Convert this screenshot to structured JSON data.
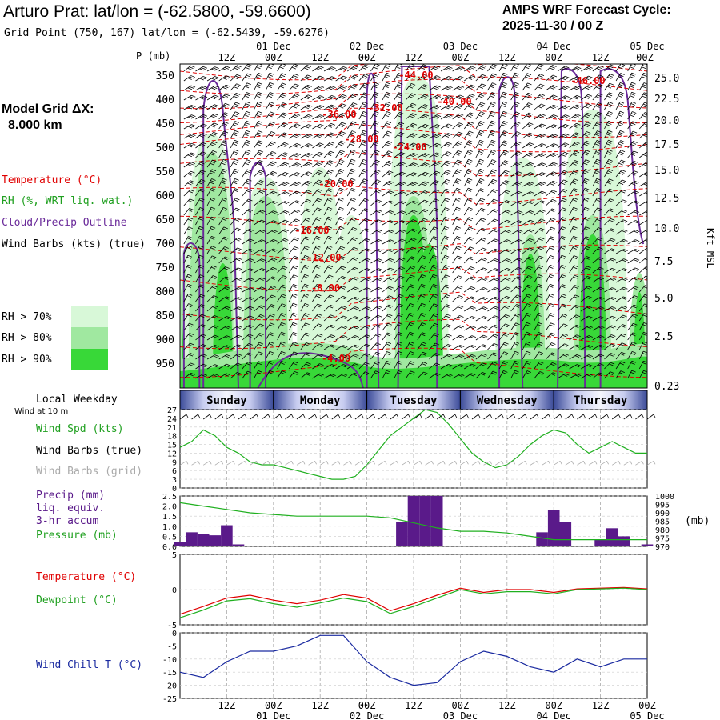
{
  "header": {
    "title": "Arturo Prat:  lat/lon = (-62.5800, -59.6600)",
    "subtitle": "Grid Point (750, 167) lat/lon = (-62.5439, -59.6276)",
    "cycle_line1": "AMPS WRF Forecast Cycle:",
    "cycle_line2": "2025-11-30 / 00  Z"
  },
  "model_grid": {
    "label": "Model Grid ΔX:",
    "value": "8.000 km"
  },
  "legend": {
    "temperature": "Temperature (°C)",
    "rh": "RH (%, WRT liq. wat.)",
    "cloud": "Cloud/Precip Outline",
    "wind": "Wind Barbs (kts) (true)",
    "rh70": "RH > 70%",
    "rh80": "RH > 80%",
    "rh90": "RH > 90%",
    "rh70_color": "#d8f8d8",
    "rh80_color": "#a0e8a0",
    "rh90_color": "#38d838",
    "temp_color": "#e00000",
    "cloud_color": "#6a2a9a"
  },
  "time_axis": {
    "hours": [
      "12Z",
      "00Z",
      "12Z",
      "00Z",
      "12Z",
      "00Z",
      "12Z",
      "00Z",
      "12Z",
      "00Z"
    ],
    "dates": [
      "01 Dec",
      "02 Dec",
      "03 Dec",
      "04 Dec",
      "05 Dec"
    ]
  },
  "pressure_axis": {
    "label": "P (mb)",
    "ticks": [
      "350",
      "400",
      "450",
      "500",
      "550",
      "600",
      "650",
      "700",
      "750",
      "800",
      "850",
      "900",
      "950"
    ]
  },
  "height_axis": {
    "label": "Kft MSL",
    "ticks": [
      "25.0",
      "22.5",
      "20.0",
      "17.5",
      "15.0",
      "12.5",
      "10.0",
      "7.5",
      "5.0",
      "2.5",
      "0.23"
    ]
  },
  "temp_labels": [
    "-44.00",
    "-40.00",
    "-46.00",
    "-36.00",
    "-32.00",
    "-28.00",
    "-24.00",
    "-20.00",
    "-16.00",
    "-12.00",
    "-8.00",
    "-4.00"
  ],
  "weekday": {
    "label": "Local Weekday",
    "days": [
      "Sunday",
      "Monday",
      "Tuesday",
      "Wednesday",
      "Thursday"
    ]
  },
  "wind_panel": {
    "sublabel": "Wind at 10 m",
    "spd_label": "Wind Spd (kts)",
    "true_label": "Wind Barbs (true)",
    "grid_label": "Wind Barbs (grid)",
    "yticks": [
      "27",
      "24",
      "21",
      "18",
      "15",
      "12",
      "9",
      "6",
      "3",
      "0"
    ]
  },
  "precip_panel": {
    "label1": "Precip (mm)",
    "label2": "liq. equiv.",
    "label3": "3-hr accum",
    "label4": "Pressure (mb)",
    "yticks": [
      "2.5",
      "2.0",
      "1.5",
      "1.0",
      "0.5",
      "0.0"
    ],
    "ryticks": [
      "1000",
      "995",
      "990",
      "985",
      "980",
      "975",
      "970"
    ],
    "unit": "(mb)"
  },
  "temp_panel": {
    "label1": "Temperature (°C)",
    "label2": "Dewpoint (°C)",
    "yticks": [
      "5",
      "0",
      "-5"
    ]
  },
  "chill_panel": {
    "label": "Wind Chill T (°C)",
    "yticks": [
      "0",
      "-5",
      "-10",
      "-15",
      "-20",
      "-25"
    ]
  },
  "chart_data": [
    {
      "type": "area",
      "title": "Cross section: RH shading, temperature contours, cloud outline, wind barbs",
      "x_hours": [
        0,
        3,
        6,
        9,
        12,
        15,
        18,
        21,
        24,
        27,
        30,
        33,
        36,
        39,
        42,
        45,
        48,
        51,
        54,
        57,
        60,
        63,
        66,
        69,
        72,
        75,
        78,
        81,
        84,
        87,
        90,
        93,
        96,
        99,
        102,
        105,
        108,
        111,
        114,
        117,
        120
      ],
      "ylabel": "P (mb)",
      "ylim": [
        1000,
        325
      ]
    },
    {
      "type": "line",
      "title": "Wind Spd (kts)",
      "x_hours": [
        0,
        3,
        6,
        9,
        12,
        15,
        18,
        21,
        24,
        27,
        30,
        33,
        36,
        39,
        42,
        45,
        48,
        51,
        54,
        57,
        60,
        63,
        66,
        69,
        72,
        75,
        78,
        81,
        84,
        87,
        90,
        93,
        96,
        99,
        102,
        105,
        108,
        111,
        114,
        117,
        120
      ],
      "series": [
        {
          "name": "Wind Spd (kts)",
          "values": [
            14,
            16,
            20,
            18,
            14,
            12,
            9,
            8,
            8,
            7,
            6,
            5,
            4,
            3,
            3,
            4,
            8,
            13,
            18,
            21,
            24,
            27,
            26,
            22,
            17,
            12,
            9,
            7,
            8,
            11,
            15,
            18,
            20,
            19,
            15,
            12,
            14,
            16,
            14,
            12,
            12
          ]
        }
      ],
      "ylim": [
        0,
        27
      ]
    },
    {
      "type": "bar",
      "title": "Precip (mm) liq. equiv. 3-hr accum",
      "x_hours": [
        0,
        3,
        6,
        9,
        12,
        15,
        18,
        21,
        24,
        27,
        30,
        33,
        36,
        39,
        42,
        45,
        48,
        51,
        54,
        57,
        60,
        63,
        66,
        69,
        72,
        75,
        78,
        81,
        84,
        87,
        90,
        93,
        96,
        99,
        102,
        105,
        108,
        111,
        114,
        117,
        120
      ],
      "series": [
        {
          "name": "Precip (mm)",
          "values": [
            0.2,
            0.7,
            0.6,
            0.55,
            1.05,
            0.1,
            0,
            0,
            0,
            0,
            0,
            0,
            0,
            0,
            0,
            0,
            0,
            0,
            0,
            1.2,
            2.5,
            2.5,
            2.5,
            0,
            0,
            0,
            0,
            0,
            0,
            0,
            0,
            0.7,
            1.8,
            1.2,
            0,
            0,
            0.35,
            0.9,
            0.5,
            0,
            0.1
          ]
        }
      ],
      "ylim": [
        0,
        2.5
      ]
    },
    {
      "type": "line",
      "title": "Pressure (mb)",
      "x_hours": [
        0,
        6,
        12,
        18,
        24,
        30,
        36,
        42,
        48,
        54,
        60,
        66,
        72,
        78,
        84,
        90,
        96,
        102,
        108,
        114,
        120
      ],
      "series": [
        {
          "name": "Pressure (mb)",
          "values": [
            996,
            994,
            992,
            990,
            989,
            988,
            988,
            988,
            988,
            987,
            984,
            981,
            979,
            979,
            978,
            976,
            974,
            974,
            974,
            974,
            974
          ]
        }
      ],
      "ylim": [
        970,
        1000
      ]
    },
    {
      "type": "line",
      "title": "Temperature / Dewpoint (°C)",
      "x_hours": [
        0,
        6,
        12,
        18,
        24,
        30,
        36,
        42,
        48,
        54,
        60,
        66,
        72,
        78,
        84,
        90,
        96,
        102,
        108,
        114,
        120
      ],
      "series": [
        {
          "name": "Temperature (°C)",
          "values": [
            -3.5,
            -2.4,
            -1.2,
            -0.8,
            -1.5,
            -2.0,
            -1.5,
            -0.7,
            -1.2,
            -3.0,
            -2.0,
            -0.8,
            0.2,
            -0.4,
            0.0,
            0.0,
            -0.4,
            0.1,
            0.2,
            0.3,
            0.1
          ]
        },
        {
          "name": "Dewpoint (°C)",
          "values": [
            -4.0,
            -2.9,
            -1.6,
            -1.3,
            -2.0,
            -2.5,
            -1.9,
            -1.2,
            -1.7,
            -3.4,
            -2.4,
            -1.2,
            0.0,
            -0.6,
            -0.3,
            -0.3,
            -0.6,
            0.0,
            0.1,
            0.2,
            0.0
          ]
        }
      ],
      "ylim": [
        -5,
        5
      ]
    },
    {
      "type": "line",
      "title": "Wind Chill T (°C)",
      "x_hours": [
        0,
        6,
        12,
        18,
        24,
        30,
        36,
        42,
        48,
        54,
        60,
        66,
        72,
        78,
        84,
        90,
        96,
        102,
        108,
        114,
        120
      ],
      "series": [
        {
          "name": "Wind Chill T (°C)",
          "values": [
            -15,
            -17,
            -11,
            -7,
            -7,
            -5,
            -1,
            -1,
            -11,
            -17,
            -20,
            -19,
            -11,
            -7,
            -9,
            -13,
            -15,
            -10,
            -13,
            -10,
            -10
          ]
        }
      ],
      "ylim": [
        -25,
        0
      ]
    }
  ]
}
